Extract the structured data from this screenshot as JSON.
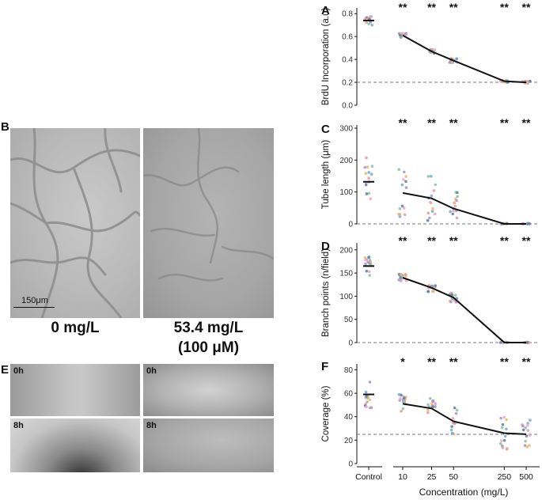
{
  "panels": {
    "b_label": "B",
    "e_label": "E",
    "b_scale": "150μm",
    "b_left_caption": "0 mg/L",
    "b_right_caption_1": "53.4 mg/L",
    "b_right_caption_2": "(100 μM)",
    "e_time_0": "0h",
    "e_time_8": "8h"
  },
  "significance_marker": "**",
  "x_axis": {
    "title": "Concentration (mg/L)",
    "tick_labels": [
      "Control",
      "10",
      "25",
      "50",
      "250",
      "500"
    ]
  },
  "chart_data": [
    {
      "type": "scatter",
      "panel_label": "A",
      "ylabel": "BrdU Incorporation (a.u)",
      "ylim": [
        0,
        0.85
      ],
      "yticks": [
        0.0,
        0.2,
        0.4,
        0.6,
        0.8
      ],
      "ytick_labels": [
        "0.0",
        "0.2",
        "0.4",
        "0.6",
        "0.8"
      ],
      "reference_line": 0.2,
      "categories": [
        "Control",
        "10",
        "25",
        "50",
        "250",
        "500"
      ],
      "control_median": 0.74,
      "mean_line": {
        "x": [
          10,
          25,
          50,
          250,
          500
        ],
        "y": [
          0.61,
          0.47,
          0.39,
          0.21,
          0.2
        ]
      },
      "significance": [
        "",
        "**",
        "**",
        "**",
        "**",
        "**"
      ],
      "spread": [
        0.04,
        0.02,
        0.02,
        0.02,
        0.01,
        0.01
      ]
    },
    {
      "type": "scatter",
      "panel_label": "C",
      "ylabel": "Tube length (μm)",
      "ylim": [
        0,
        310
      ],
      "yticks": [
        0,
        100,
        200,
        300
      ],
      "ytick_labels": [
        "0",
        "100",
        "200",
        "300"
      ],
      "reference_line": 0,
      "categories": [
        "Control",
        "10",
        "25",
        "50",
        "250",
        "500"
      ],
      "control_median": 132,
      "mean_line": {
        "x": [
          10,
          25,
          50,
          250,
          500
        ],
        "y": [
          97,
          80,
          48,
          0,
          0
        ]
      },
      "significance": [
        "",
        "**",
        "**",
        "**",
        "**",
        "**"
      ],
      "spread": [
        90,
        80,
        70,
        55,
        2,
        2
      ]
    },
    {
      "type": "scatter",
      "panel_label": "D",
      "ylabel": "Branch points (n/field)",
      "ylim": [
        0,
        215
      ],
      "yticks": [
        0,
        50,
        100,
        150,
        200
      ],
      "ytick_labels": [
        "0",
        "50",
        "100",
        "150",
        "200"
      ],
      "reference_line": 0,
      "categories": [
        "Control",
        "10",
        "25",
        "50",
        "250",
        "500"
      ],
      "control_median": 165,
      "mean_line": {
        "x": [
          10,
          25,
          50,
          250,
          500
        ],
        "y": [
          140,
          118,
          97,
          0,
          0
        ]
      },
      "significance": [
        "",
        "**",
        "**",
        "**",
        "**",
        "**"
      ],
      "spread": [
        22,
        8,
        9,
        10,
        1,
        1
      ]
    },
    {
      "type": "scatter",
      "panel_label": "F",
      "ylabel": "Coverage (%)",
      "ylim": [
        0,
        85
      ],
      "yticks": [
        0,
        20,
        40,
        60,
        80
      ],
      "ytick_labels": [
        "0",
        "20",
        "40",
        "60",
        "80"
      ],
      "reference_line": 25,
      "categories": [
        "Control",
        "10",
        "25",
        "50",
        "250",
        "500"
      ],
      "control_median": 59,
      "mean_line": {
        "x": [
          10,
          25,
          50,
          250,
          500
        ],
        "y": [
          51,
          47,
          36,
          26,
          25
        ]
      },
      "significance": [
        "",
        "*",
        "**",
        "**",
        "**",
        "**"
      ],
      "spread": [
        14,
        8,
        9,
        12,
        14,
        14
      ]
    }
  ],
  "colors": {
    "line": "#111111",
    "reference": "#777777",
    "median": "#111111",
    "points": [
      "#7aa7c7",
      "#e59a9a",
      "#f2b46a",
      "#a890c8",
      "#86c39b",
      "#e7a3d0",
      "#5b7fa0"
    ]
  }
}
